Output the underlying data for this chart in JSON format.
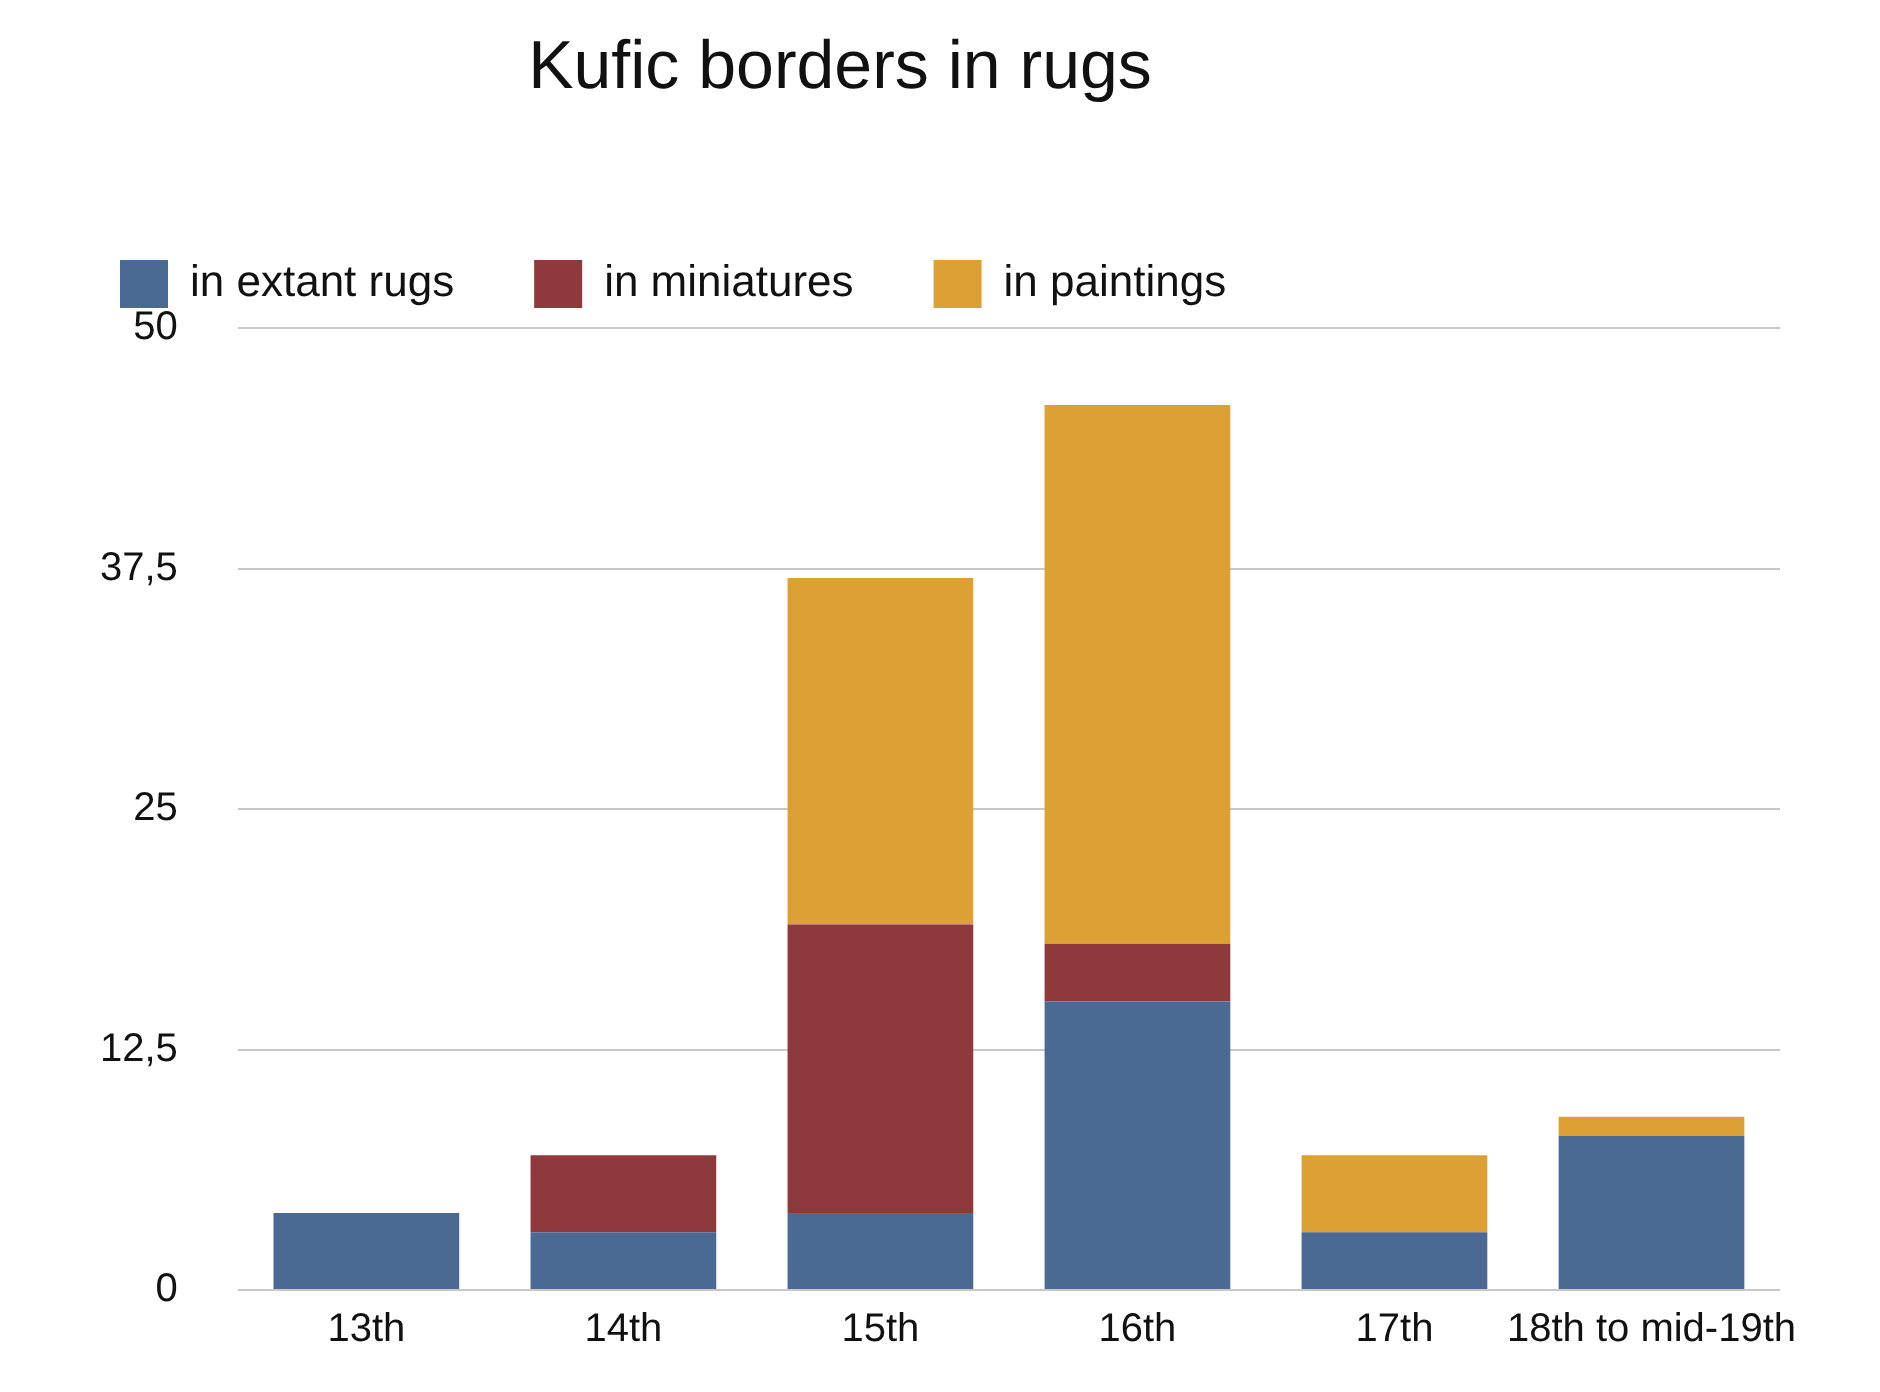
{
  "chart_data": {
    "type": "bar",
    "title": "Kufic borders in rugs",
    "stacked": true,
    "grid": "y",
    "legend": "top left",
    "categories": [
      "13th",
      "14th",
      "15th",
      "16th",
      "17th",
      "18th to mid-19th"
    ],
    "series": [
      {
        "name": "in extant rugs",
        "color": "#4a6a94",
        "values": [
          4,
          3,
          4,
          15,
          3,
          8
        ]
      },
      {
        "name": "in miniatures",
        "color": "#8e3a3d",
        "values": [
          0,
          4,
          15,
          3,
          0,
          0
        ]
      },
      {
        "name": "in paintings",
        "color": "#dca035",
        "values": [
          0,
          0,
          18,
          28,
          4,
          1
        ]
      }
    ],
    "ylim": [
      0,
      50
    ],
    "yticks": [
      0,
      {
        "value": 12.5,
        "label": "12,5"
      },
      25,
      {
        "value": 37.5,
        "label": "37,5"
      },
      50
    ]
  }
}
